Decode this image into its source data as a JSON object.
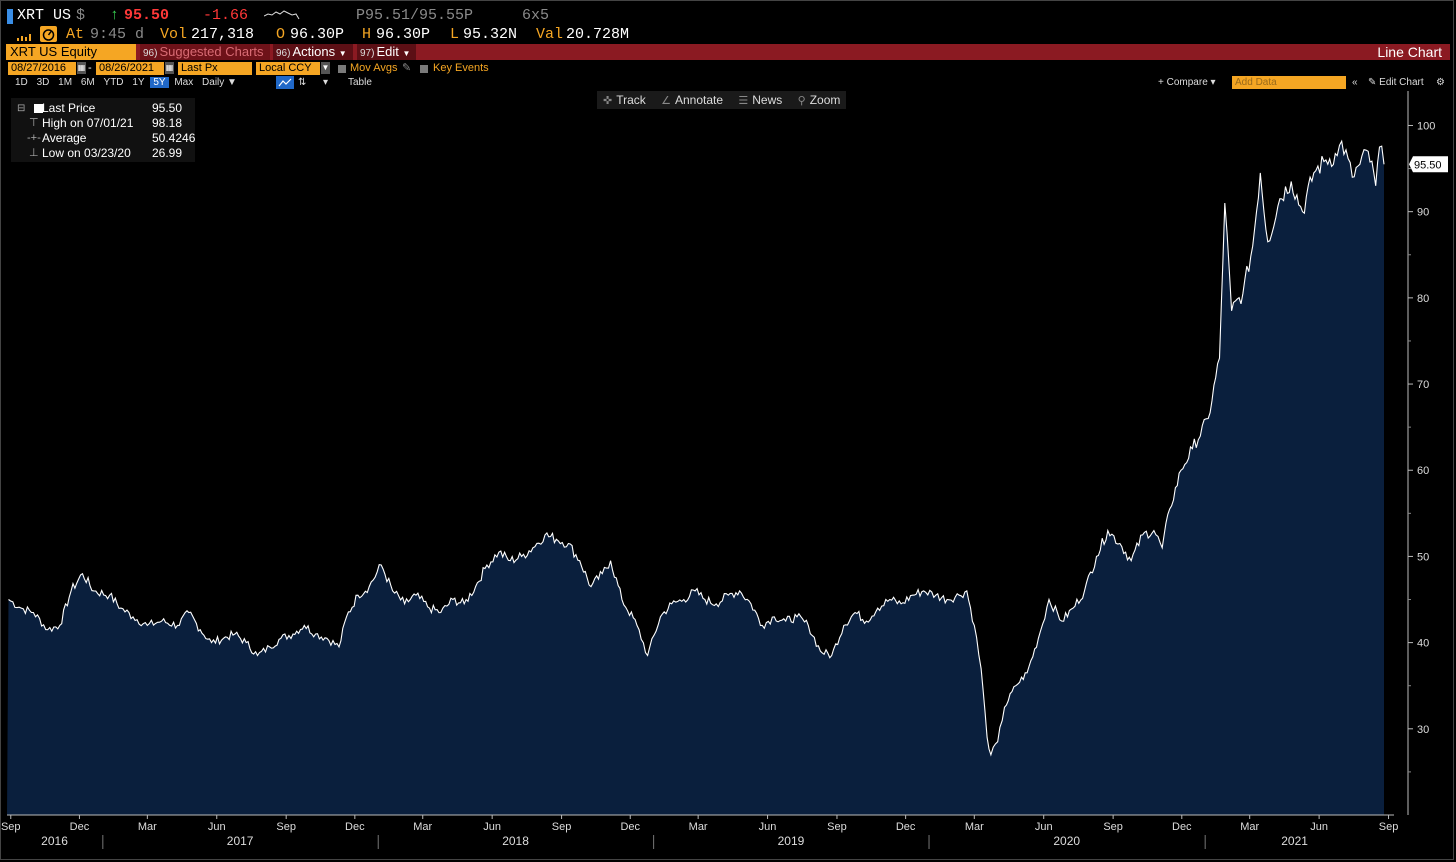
{
  "quote": {
    "ticker": "XRT US",
    "currency_symbol": "$",
    "last": "95.50",
    "change": "-1.66",
    "bid_ask": "P95.51/95.55P",
    "size": "6x5",
    "at_label": "At",
    "time": "9:45 d",
    "vol_label": "Vol",
    "volume": "217,318",
    "open_label": "O",
    "open": "96.30P",
    "high_label": "H",
    "high": "96.30P",
    "low_label": "L",
    "low": "95.32N",
    "val_label": "Val",
    "value": "20.728M"
  },
  "header": {
    "security": "XRT US Equity",
    "suggested_num": "96)",
    "suggested_label": "Suggested Charts",
    "actions_num": "96)",
    "actions_label": "Actions",
    "edit_num": "97)",
    "edit_label": "Edit",
    "chart_type": "Line Chart"
  },
  "controls": {
    "start_date": "08/27/2016",
    "end_date": "08/26/2021",
    "field": "Last Px",
    "currency": "Local CCY",
    "mov_avgs": "Mov Avgs",
    "key_events": "Key Events",
    "periods": [
      "1D",
      "3D",
      "1M",
      "6M",
      "YTD",
      "1Y",
      "5Y",
      "Max"
    ],
    "active_period": "5Y",
    "frequency": "Daily",
    "table": "Table",
    "compare": "Compare",
    "add_data_placeholder": "Add Data",
    "edit_chart": "Edit Chart"
  },
  "tools": {
    "track": "Track",
    "annotate": "Annotate",
    "news": "News",
    "zoom": "Zoom"
  },
  "legend": {
    "rows": [
      {
        "label": "Last Price",
        "value": "95.50"
      },
      {
        "label": "High on 07/01/21",
        "value": "98.18"
      },
      {
        "label": "Average",
        "value": "50.4246"
      },
      {
        "label": "Low on 03/23/20",
        "value": "26.99"
      }
    ]
  },
  "chart_data": {
    "type": "area",
    "series": [
      {
        "name": "Last Price",
        "points": [
          [
            "2016-08-29",
            45.0
          ],
          [
            "2016-09-15",
            44.0
          ],
          [
            "2016-10-01",
            43.5
          ],
          [
            "2016-10-20",
            41.5
          ],
          [
            "2016-11-05",
            42.0
          ],
          [
            "2016-11-20",
            46.0
          ],
          [
            "2016-12-05",
            48.0
          ],
          [
            "2016-12-20",
            46.0
          ],
          [
            "2017-01-10",
            45.5
          ],
          [
            "2017-01-25",
            44.0
          ],
          [
            "2017-02-10",
            43.0
          ],
          [
            "2017-03-01",
            42.0
          ],
          [
            "2017-03-20",
            42.5
          ],
          [
            "2017-04-10",
            42.0
          ],
          [
            "2017-04-25",
            43.5
          ],
          [
            "2017-05-10",
            41.5
          ],
          [
            "2017-05-25",
            40.0
          ],
          [
            "2017-06-10",
            40.5
          ],
          [
            "2017-06-25",
            41.0
          ],
          [
            "2017-07-10",
            40.0
          ],
          [
            "2017-07-25",
            38.5
          ],
          [
            "2017-08-10",
            39.5
          ],
          [
            "2017-08-25",
            40.5
          ],
          [
            "2017-09-10",
            41.0
          ],
          [
            "2017-09-25",
            42.0
          ],
          [
            "2017-10-10",
            41.0
          ],
          [
            "2017-10-25",
            40.5
          ],
          [
            "2017-11-10",
            39.5
          ],
          [
            "2017-11-20",
            43.0
          ],
          [
            "2017-12-05",
            45.5
          ],
          [
            "2017-12-20",
            46.5
          ],
          [
            "2018-01-05",
            49.0
          ],
          [
            "2018-01-20",
            46.0
          ],
          [
            "2018-02-05",
            44.5
          ],
          [
            "2018-02-20",
            45.5
          ],
          [
            "2018-03-10",
            44.0
          ],
          [
            "2018-03-25",
            43.5
          ],
          [
            "2018-04-10",
            45.0
          ],
          [
            "2018-04-25",
            44.5
          ],
          [
            "2018-05-10",
            46.5
          ],
          [
            "2018-05-25",
            49.0
          ],
          [
            "2018-06-10",
            50.5
          ],
          [
            "2018-06-25",
            49.5
          ],
          [
            "2018-07-10",
            50.0
          ],
          [
            "2018-07-25",
            51.0
          ],
          [
            "2018-08-10",
            52.5
          ],
          [
            "2018-08-25",
            52.0
          ],
          [
            "2018-09-10",
            51.5
          ],
          [
            "2018-09-25",
            49.5
          ],
          [
            "2018-10-10",
            46.5
          ],
          [
            "2018-10-25",
            48.0
          ],
          [
            "2018-11-05",
            49.5
          ],
          [
            "2018-11-20",
            45.0
          ],
          [
            "2018-12-10",
            42.0
          ],
          [
            "2018-12-24",
            38.5
          ],
          [
            "2019-01-10",
            43.0
          ],
          [
            "2019-01-25",
            44.5
          ],
          [
            "2019-02-10",
            45.0
          ],
          [
            "2019-02-25",
            46.0
          ],
          [
            "2019-03-10",
            45.0
          ],
          [
            "2019-03-25",
            44.5
          ],
          [
            "2019-04-10",
            45.5
          ],
          [
            "2019-04-25",
            46.0
          ],
          [
            "2019-05-10",
            44.5
          ],
          [
            "2019-05-25",
            42.0
          ],
          [
            "2019-06-10",
            43.0
          ],
          [
            "2019-06-25",
            42.5
          ],
          [
            "2019-07-10",
            43.0
          ],
          [
            "2019-07-25",
            42.0
          ],
          [
            "2019-08-10",
            39.0
          ],
          [
            "2019-08-25",
            38.5
          ],
          [
            "2019-09-10",
            42.0
          ],
          [
            "2019-09-25",
            43.5
          ],
          [
            "2019-10-10",
            42.5
          ],
          [
            "2019-10-25",
            44.0
          ],
          [
            "2019-11-10",
            45.0
          ],
          [
            "2019-11-25",
            44.5
          ],
          [
            "2019-12-10",
            45.5
          ],
          [
            "2019-12-25",
            46.0
          ],
          [
            "2020-01-10",
            45.5
          ],
          [
            "2020-01-25",
            45.0
          ],
          [
            "2020-02-10",
            45.5
          ],
          [
            "2020-02-20",
            46.0
          ],
          [
            "2020-03-01",
            42.0
          ],
          [
            "2020-03-10",
            37.0
          ],
          [
            "2020-03-18",
            29.0
          ],
          [
            "2020-03-23",
            26.99
          ],
          [
            "2020-04-01",
            28.5
          ],
          [
            "2020-04-10",
            32.5
          ],
          [
            "2020-04-25",
            35.0
          ],
          [
            "2020-05-10",
            36.5
          ],
          [
            "2020-05-25",
            40.5
          ],
          [
            "2020-06-08",
            45.0
          ],
          [
            "2020-06-25",
            42.5
          ],
          [
            "2020-07-10",
            44.0
          ],
          [
            "2020-07-25",
            46.0
          ],
          [
            "2020-08-10",
            50.0
          ],
          [
            "2020-08-25",
            53.0
          ],
          [
            "2020-09-10",
            51.5
          ],
          [
            "2020-09-25",
            49.5
          ],
          [
            "2020-10-10",
            52.5
          ],
          [
            "2020-10-25",
            53.0
          ],
          [
            "2020-11-05",
            51.0
          ],
          [
            "2020-11-15",
            55.5
          ],
          [
            "2020-11-30",
            60.0
          ],
          [
            "2020-12-15",
            62.5
          ],
          [
            "2021-01-05",
            66.0
          ],
          [
            "2021-01-20",
            73.0
          ],
          [
            "2021-01-27",
            91.0
          ],
          [
            "2021-02-05",
            78.5
          ],
          [
            "2021-02-20",
            80.5
          ],
          [
            "2021-03-05",
            86.0
          ],
          [
            "2021-03-15",
            94.5
          ],
          [
            "2021-03-25",
            86.5
          ],
          [
            "2021-04-10",
            91.5
          ],
          [
            "2021-04-25",
            93.5
          ],
          [
            "2021-05-10",
            90.0
          ],
          [
            "2021-05-25",
            94.5
          ],
          [
            "2021-06-10",
            96.0
          ],
          [
            "2021-06-25",
            96.5
          ],
          [
            "2021-07-01",
            98.18
          ],
          [
            "2021-07-15",
            94.0
          ],
          [
            "2021-07-25",
            95.5
          ],
          [
            "2021-08-05",
            97.0
          ],
          [
            "2021-08-15",
            93.0
          ],
          [
            "2021-08-20",
            97.5
          ],
          [
            "2021-08-26",
            95.5
          ]
        ]
      }
    ],
    "x_range": [
      "2016-08-27",
      "2021-08-26"
    ],
    "ylim": [
      20,
      104
    ],
    "y_ticks": [
      30,
      40,
      50,
      60,
      70,
      80,
      90,
      100
    ],
    "last_value_label": "95.50",
    "x_ticks": [
      {
        "date": "2016-09-01",
        "label": "Sep"
      },
      {
        "date": "2016-12-01",
        "label": "Dec"
      },
      {
        "date": "2017-03-01",
        "label": "Mar"
      },
      {
        "date": "2017-06-01",
        "label": "Jun"
      },
      {
        "date": "2017-09-01",
        "label": "Sep"
      },
      {
        "date": "2017-12-01",
        "label": "Dec"
      },
      {
        "date": "2018-03-01",
        "label": "Mar"
      },
      {
        "date": "2018-06-01",
        "label": "Jun"
      },
      {
        "date": "2018-09-01",
        "label": "Sep"
      },
      {
        "date": "2018-12-01",
        "label": "Dec"
      },
      {
        "date": "2019-03-01",
        "label": "Mar"
      },
      {
        "date": "2019-06-01",
        "label": "Jun"
      },
      {
        "date": "2019-09-01",
        "label": "Sep"
      },
      {
        "date": "2019-12-01",
        "label": "Dec"
      },
      {
        "date": "2020-03-01",
        "label": "Mar"
      },
      {
        "date": "2020-06-01",
        "label": "Jun"
      },
      {
        "date": "2020-09-01",
        "label": "Sep"
      },
      {
        "date": "2020-12-01",
        "label": "Dec"
      },
      {
        "date": "2021-03-01",
        "label": "Mar"
      },
      {
        "date": "2021-06-01",
        "label": "Jun"
      },
      {
        "date": "2021-09-01",
        "label": "Sep"
      }
    ],
    "year_labels": [
      {
        "year": "2016",
        "from": "2016-08-27",
        "to": "2016-12-31"
      },
      {
        "year": "2017",
        "from": "2017-01-01",
        "to": "2017-12-31"
      },
      {
        "year": "2018",
        "from": "2018-01-01",
        "to": "2018-12-31"
      },
      {
        "year": "2019",
        "from": "2019-01-01",
        "to": "2019-12-31"
      },
      {
        "year": "2020",
        "from": "2020-01-01",
        "to": "2020-12-31"
      },
      {
        "year": "2021",
        "from": "2021-01-01",
        "to": "2021-08-26"
      }
    ],
    "grid": false,
    "fill_color": "#0a1f3d",
    "line_color": "#ffffff"
  }
}
